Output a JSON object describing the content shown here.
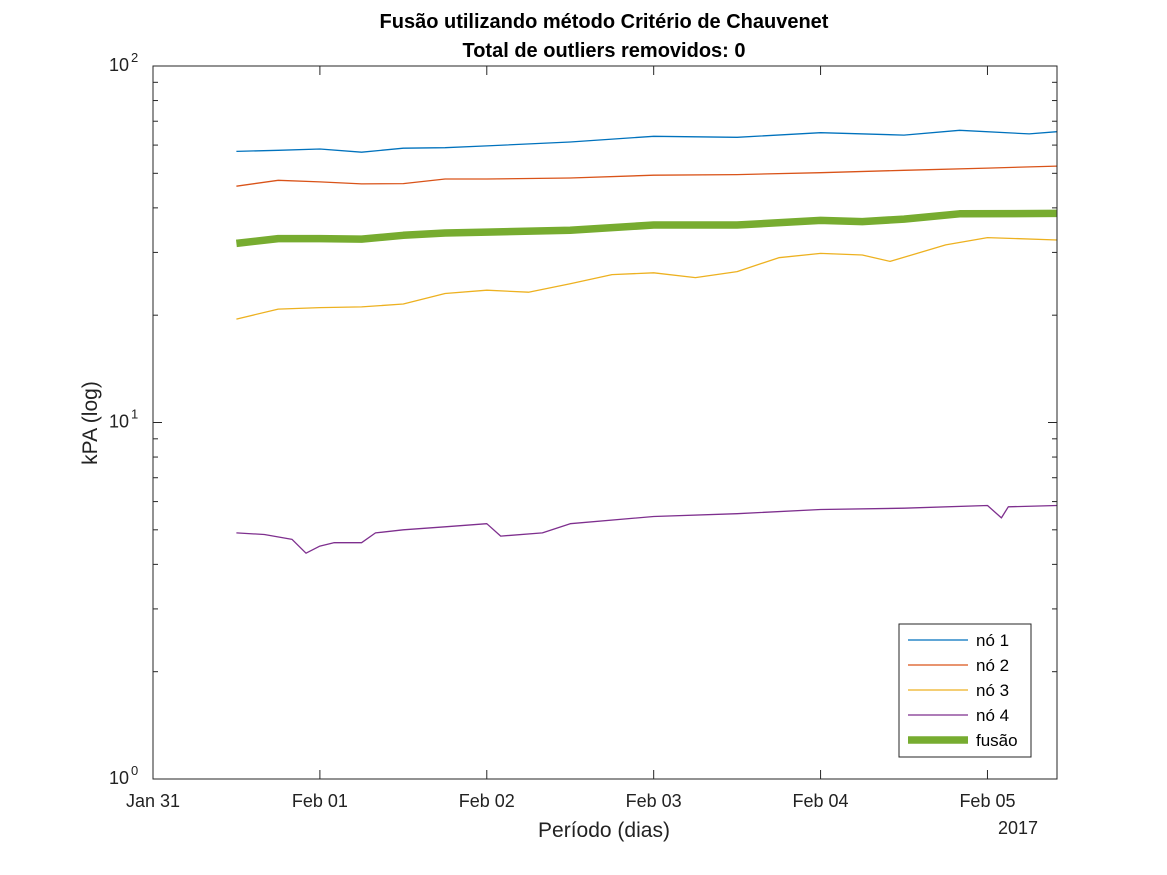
{
  "chart_data": {
    "type": "line",
    "title": "Fusão utilizando método Critério de Chauvenet",
    "subtitle": "Total de outliers removidos: 0",
    "xlabel": "Período (dias)",
    "ylabel": "kPA (log)",
    "year_label": "2017",
    "x_ticks": [
      "Jan 31",
      "Feb 01",
      "Feb 02",
      "Feb 03",
      "Feb 04",
      "Feb 05"
    ],
    "y_ticks": [
      {
        "base": "10",
        "exp": "0",
        "value": 1
      },
      {
        "base": "10",
        "exp": "1",
        "value": 10
      },
      {
        "base": "10",
        "exp": "2",
        "value": 100
      }
    ],
    "xlim": [
      "2017-01-31 00:00",
      "2017-02-05 10:00"
    ],
    "ylim": [
      1,
      100
    ],
    "y_scale": "log",
    "grid": false,
    "legend_position": "bottom-right",
    "series": [
      {
        "name": "nó 1",
        "color": "#0072BD",
        "width": 1.3,
        "x": [
          "2017-01-31 12:00",
          "2017-01-31 18:00",
          "2017-02-01 00:00",
          "2017-02-01 06:00",
          "2017-02-01 12:00",
          "2017-02-01 18:00",
          "2017-02-02 00:00",
          "2017-02-02 12:00",
          "2017-02-03 00:00",
          "2017-02-03 12:00",
          "2017-02-04 00:00",
          "2017-02-04 12:00",
          "2017-02-04 20:00",
          "2017-02-05 06:00",
          "2017-02-05 10:00"
        ],
        "y": [
          57.6,
          58.0,
          58.5,
          57.3,
          58.8,
          59.0,
          59.7,
          61.2,
          63.5,
          63.1,
          65.0,
          64.0,
          66.0,
          64.5,
          65.4
        ]
      },
      {
        "name": "nó 2",
        "color": "#D95319",
        "width": 1.3,
        "x": [
          "2017-01-31 12:00",
          "2017-01-31 18:00",
          "2017-02-01 00:00",
          "2017-02-01 06:00",
          "2017-02-01 12:00",
          "2017-02-01 18:00",
          "2017-02-02 00:00",
          "2017-02-02 12:00",
          "2017-02-03 00:00",
          "2017-02-03 12:00",
          "2017-02-04 00:00",
          "2017-02-04 12:00",
          "2017-02-05 00:00",
          "2017-02-05 10:00"
        ],
        "y": [
          46.0,
          47.8,
          47.3,
          46.7,
          46.8,
          48.2,
          48.2,
          48.5,
          49.4,
          49.6,
          50.2,
          51.0,
          51.7,
          52.4
        ]
      },
      {
        "name": "nó 3",
        "color": "#EDB120",
        "width": 1.3,
        "x": [
          "2017-01-31 12:00",
          "2017-01-31 18:00",
          "2017-02-01 00:00",
          "2017-02-01 06:00",
          "2017-02-01 12:00",
          "2017-02-01 18:00",
          "2017-02-02 00:00",
          "2017-02-02 06:00",
          "2017-02-02 12:00",
          "2017-02-02 18:00",
          "2017-02-03 00:00",
          "2017-02-03 06:00",
          "2017-02-03 12:00",
          "2017-02-03 18:00",
          "2017-02-04 00:00",
          "2017-02-04 06:00",
          "2017-02-04 10:00",
          "2017-02-04 18:00",
          "2017-02-05 00:00",
          "2017-02-05 10:00"
        ],
        "y": [
          19.5,
          20.8,
          21.0,
          21.1,
          21.5,
          23.0,
          23.5,
          23.2,
          24.5,
          26.0,
          26.3,
          25.5,
          26.5,
          29.0,
          29.8,
          29.5,
          28.3,
          31.5,
          33.0,
          32.5
        ]
      },
      {
        "name": "nó 4",
        "color": "#7E2F8E",
        "width": 1.3,
        "x": [
          "2017-01-31 12:00",
          "2017-01-31 16:00",
          "2017-01-31 20:00",
          "2017-01-31 22:00",
          "2017-02-01 00:00",
          "2017-02-01 02:00",
          "2017-02-01 06:00",
          "2017-02-01 08:00",
          "2017-02-01 12:00",
          "2017-02-01 18:00",
          "2017-02-02 00:00",
          "2017-02-02 02:00",
          "2017-02-02 08:00",
          "2017-02-02 12:00",
          "2017-02-03 00:00",
          "2017-02-03 12:00",
          "2017-02-04 00:00",
          "2017-02-04 12:00",
          "2017-02-05 00:00",
          "2017-02-05 02:00",
          "2017-02-05 03:00",
          "2017-02-05 10:00"
        ],
        "y": [
          4.9,
          4.85,
          4.7,
          4.3,
          4.5,
          4.6,
          4.6,
          4.9,
          5.0,
          5.1,
          5.2,
          4.8,
          4.9,
          5.2,
          5.45,
          5.55,
          5.7,
          5.75,
          5.85,
          5.4,
          5.8,
          5.85
        ]
      },
      {
        "name": "fusão",
        "color": "#77AC30",
        "width": 7.5,
        "x": [
          "2017-01-31 12:00",
          "2017-01-31 18:00",
          "2017-02-01 00:00",
          "2017-02-01 06:00",
          "2017-02-01 12:00",
          "2017-02-01 18:00",
          "2017-02-02 00:00",
          "2017-02-02 12:00",
          "2017-02-03 00:00",
          "2017-02-03 12:00",
          "2017-02-04 00:00",
          "2017-02-04 06:00",
          "2017-02-04 12:00",
          "2017-02-04 20:00",
          "2017-02-05 10:00"
        ],
        "y": [
          31.8,
          32.8,
          32.8,
          32.7,
          33.5,
          34.0,
          34.2,
          34.6,
          35.8,
          35.8,
          36.9,
          36.6,
          37.2,
          38.5,
          38.6
        ]
      }
    ]
  }
}
